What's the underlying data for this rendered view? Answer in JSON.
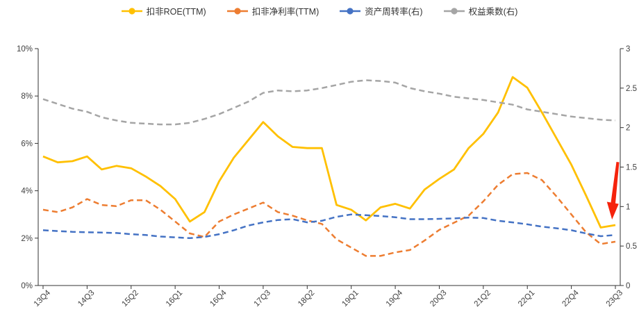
{
  "legend": {
    "items": [
      {
        "label": "扣非ROE(TTM)",
        "color": "#FFC000"
      },
      {
        "label": "扣非净利率(TTM)",
        "color": "#ED7D31"
      },
      {
        "label": "资产周转率(右)",
        "color": "#4472C4"
      },
      {
        "label": "权益乘数(右)",
        "color": "#A5A5A5"
      }
    ]
  },
  "chart_data": {
    "type": "line",
    "title": "",
    "x_categories": [
      "13Q4",
      "14Q1",
      "14Q2",
      "14Q3",
      "14Q4",
      "15Q1",
      "15Q2",
      "15Q3",
      "15Q4",
      "16Q1",
      "16Q2",
      "16Q3",
      "16Q4",
      "17Q1",
      "17Q2",
      "17Q3",
      "17Q4",
      "18Q1",
      "18Q2",
      "18Q3",
      "18Q4",
      "19Q1",
      "19Q2",
      "19Q3",
      "19Q4",
      "20Q1",
      "20Q2",
      "20Q3",
      "20Q4",
      "21Q1",
      "21Q2",
      "21Q3",
      "21Q4",
      "22Q1",
      "22Q2",
      "22Q3",
      "22Q4",
      "23Q1",
      "23Q2",
      "23Q3"
    ],
    "x_tick_labels": [
      "13Q4",
      "14Q3",
      "15Q2",
      "16Q1",
      "16Q4",
      "17Q3",
      "18Q2",
      "19Q1",
      "19Q4",
      "20Q3",
      "21Q2",
      "22Q1",
      "22Q4",
      "23Q3"
    ],
    "x_tick_every": 3,
    "y_left": {
      "min": 0,
      "max": 10,
      "tick_labels": [
        "0%",
        "2%",
        "4%",
        "6%",
        "8%",
        "10%"
      ],
      "label_color": "#404040"
    },
    "y_right": {
      "min": 0,
      "max": 3,
      "tick_labels": [
        "0",
        "0.5",
        "1",
        "1.5",
        "2",
        "2.5",
        "3"
      ],
      "label_color": "#404040"
    },
    "grid": false,
    "legend_position": "top-center",
    "series": [
      {
        "name": "扣非ROE(TTM)",
        "axis": "left",
        "color": "#FFC000",
        "style": "solid",
        "width": 2.8,
        "values": [
          5.45,
          5.2,
          5.25,
          5.45,
          4.9,
          5.05,
          4.95,
          4.6,
          4.2,
          3.65,
          2.7,
          3.1,
          4.4,
          5.4,
          6.15,
          6.9,
          6.3,
          5.85,
          5.8,
          5.8,
          3.4,
          3.2,
          2.75,
          3.3,
          3.45,
          3.25,
          4.05,
          4.5,
          4.9,
          5.8,
          6.4,
          7.3,
          8.8,
          8.35,
          7.3,
          6.2,
          5.1,
          3.8,
          2.45,
          2.55
        ]
      },
      {
        "name": "扣非净利率(TTM)",
        "axis": "left",
        "color": "#ED7D31",
        "style": "dashed",
        "width": 2.5,
        "values": [
          3.2,
          3.1,
          3.3,
          3.65,
          3.4,
          3.35,
          3.6,
          3.6,
          3.2,
          2.7,
          2.2,
          2.05,
          2.7,
          3.0,
          3.25,
          3.5,
          3.1,
          2.95,
          2.75,
          2.6,
          1.95,
          1.6,
          1.25,
          1.25,
          1.4,
          1.5,
          1.9,
          2.35,
          2.65,
          2.95,
          3.55,
          4.25,
          4.7,
          4.75,
          4.45,
          3.75,
          3.0,
          2.25,
          1.75,
          1.85
        ]
      },
      {
        "name": "资产周转率(右)",
        "axis": "right",
        "color": "#4472C4",
        "style": "dashed",
        "width": 2.5,
        "values": [
          0.7,
          0.69,
          0.68,
          0.675,
          0.67,
          0.665,
          0.65,
          0.64,
          0.62,
          0.61,
          0.6,
          0.615,
          0.65,
          0.7,
          0.76,
          0.8,
          0.83,
          0.84,
          0.8,
          0.82,
          0.87,
          0.9,
          0.89,
          0.88,
          0.865,
          0.84,
          0.84,
          0.845,
          0.85,
          0.86,
          0.855,
          0.82,
          0.8,
          0.775,
          0.745,
          0.725,
          0.7,
          0.66,
          0.625,
          0.64
        ]
      },
      {
        "name": "权益乘数(右)",
        "axis": "right",
        "color": "#A5A5A5",
        "style": "dashed",
        "width": 2.5,
        "values": [
          2.36,
          2.3,
          2.24,
          2.2,
          2.13,
          2.09,
          2.06,
          2.05,
          2.04,
          2.04,
          2.06,
          2.11,
          2.17,
          2.25,
          2.33,
          2.44,
          2.47,
          2.46,
          2.47,
          2.5,
          2.54,
          2.58,
          2.6,
          2.59,
          2.57,
          2.5,
          2.46,
          2.43,
          2.39,
          2.37,
          2.35,
          2.32,
          2.29,
          2.23,
          2.2,
          2.17,
          2.14,
          2.12,
          2.1,
          2.09
        ]
      }
    ],
    "annotations": [
      {
        "type": "arrow",
        "direction": "down",
        "color": "#F5230C",
        "target_category": "23Q3"
      }
    ]
  }
}
